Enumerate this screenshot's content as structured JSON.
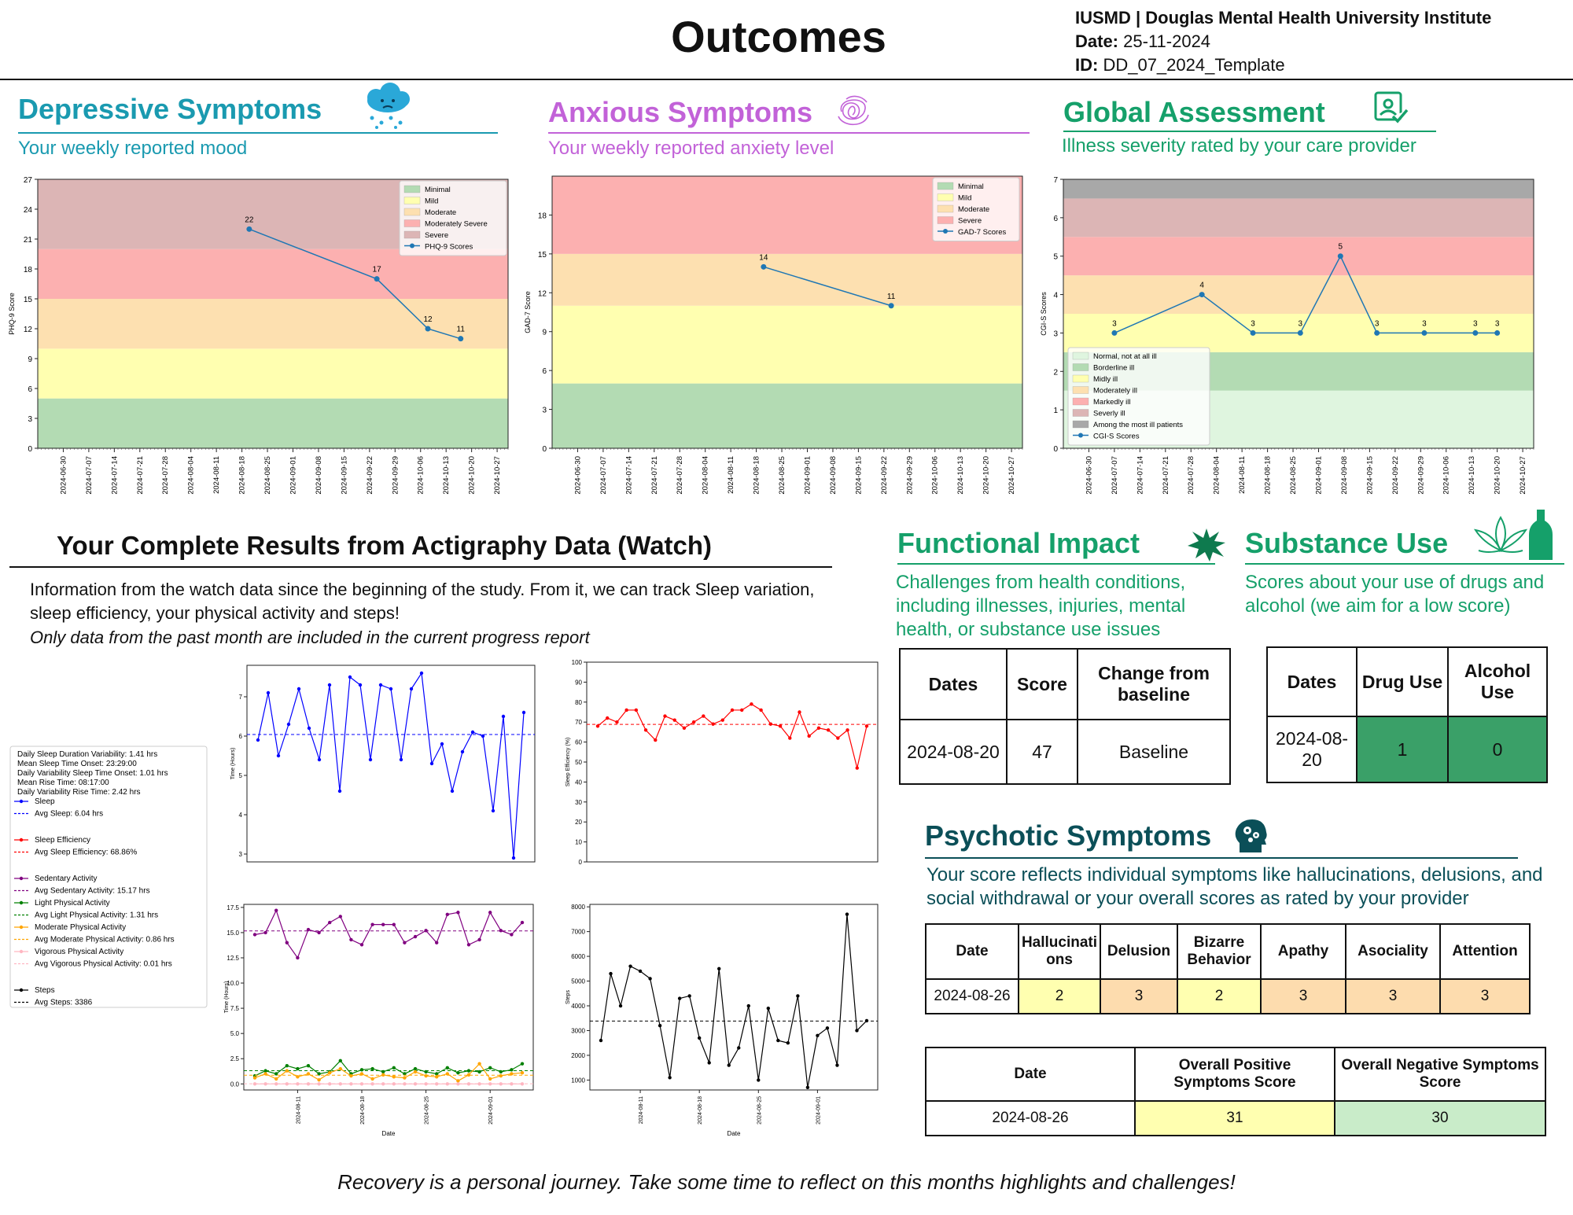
{
  "header": {
    "title": "Outcomes",
    "org": "IUSMD | Douglas Mental Health University Institute",
    "date_label": "Date:",
    "date_value": "25-11-2024",
    "id_label": "ID:",
    "id_value": "DD_07_2024_Template"
  },
  "dates_axis": [
    "2024-06-30",
    "2024-07-07",
    "2024-07-14",
    "2024-07-21",
    "2024-07-28",
    "2024-08-04",
    "2024-08-11",
    "2024-08-18",
    "2024-08-25",
    "2024-09-01",
    "2024-09-08",
    "2024-09-15",
    "2024-09-22",
    "2024-09-29",
    "2024-10-06",
    "2024-10-13",
    "2024-10-20",
    "2024-10-27"
  ],
  "depressive": {
    "title": "Depressive Symptoms",
    "subtitle": "Your weekly reported mood",
    "color": "#1a9ab0",
    "icon": "rain-cloud-icon"
  },
  "anxious": {
    "title": "Anxious Symptoms",
    "subtitle": "Your weekly reported anxiety level",
    "color": "#c262d8",
    "icon": "scribble-icon"
  },
  "global": {
    "title": "Global Assessment",
    "subtitle": "Illness severity rated by your care provider",
    "color": "#15a06a",
    "icon": "clipboard-check-icon"
  },
  "actigraphy": {
    "title": "Your Complete Results from Actigraphy Data (Watch)",
    "desc1": "Information from the watch data since the beginning of the study. From it, we can track Sleep variation,",
    "desc2": "sleep efficiency, your physical activity and steps!",
    "desc3": "Only data from the past month are included in the current progress report",
    "legend": [
      {
        "text": "Daily Sleep Duration Variability: 1.41 hrs",
        "kind": "text"
      },
      {
        "text": "Mean Sleep Time Onset: 23:29:00",
        "kind": "text"
      },
      {
        "text": "Daily Variability Sleep Time Onset: 1.01 hrs",
        "kind": "text"
      },
      {
        "text": "Mean Rise Time: 08:17:00",
        "kind": "text"
      },
      {
        "text": "Daily Variability Rise Time: 2.42 hrs",
        "kind": "text"
      },
      {
        "text": "Sleep",
        "kind": "line",
        "color": "#0000ff"
      },
      {
        "text": "Avg Sleep: 6.04 hrs",
        "kind": "dash",
        "color": "#0000ff"
      },
      {
        "text": "",
        "kind": "gap"
      },
      {
        "text": "Sleep Efficiency",
        "kind": "line",
        "color": "#ff0000"
      },
      {
        "text": "Avg Sleep Efficiency: 68.86%",
        "kind": "dash",
        "color": "#ff0000"
      },
      {
        "text": "",
        "kind": "gap"
      },
      {
        "text": "Sedentary Activity",
        "kind": "line",
        "color": "#800080"
      },
      {
        "text": "Avg Sedentary Activity: 15.17 hrs",
        "kind": "dash",
        "color": "#800080"
      },
      {
        "text": "Light Physical Activity",
        "kind": "line",
        "color": "#008000"
      },
      {
        "text": "Avg Light Physical Activity: 1.31 hrs",
        "kind": "dash",
        "color": "#008000"
      },
      {
        "text": "Moderate Physical Activity",
        "kind": "line",
        "color": "#ffa500"
      },
      {
        "text": "Avg Moderate Physical Activity: 0.86 hrs",
        "kind": "dash",
        "color": "#ffa500"
      },
      {
        "text": "Vigorous Physical Activity",
        "kind": "line",
        "color": "#ffb6c1"
      },
      {
        "text": "Avg Vigorous Physical Activity: 0.01 hrs",
        "kind": "dash",
        "color": "#ffb6c1"
      },
      {
        "text": "",
        "kind": "gap"
      },
      {
        "text": "Steps",
        "kind": "line",
        "color": "#000000"
      },
      {
        "text": "Avg Steps: 3386",
        "kind": "dash",
        "color": "#000000"
      }
    ]
  },
  "functional": {
    "title": "Functional Impact",
    "color": "#15a06a",
    "subtitle": [
      "Challenges from health conditions,",
      "including illnesses, injuries, mental",
      "health, or substance use issues"
    ],
    "headers": [
      "Dates",
      "Score",
      "Change from baseline"
    ],
    "row": [
      "2024-08-20",
      "47",
      "Baseline"
    ]
  },
  "substance": {
    "title": "Substance Use",
    "color": "#15a06a",
    "subtitle": [
      "Scores about your use of drugs and",
      "alcohol (we aim for a low score)"
    ],
    "headers": [
      "Dates",
      "Drug Use",
      "Alcohol Use"
    ],
    "row": [
      "2024-08-20",
      "1",
      "0"
    ],
    "cell_color": "#3aa068"
  },
  "psychotic": {
    "title": "Psychotic Symptoms",
    "color": "#0b4f58",
    "subtitle": [
      "Your score reflects individual symptoms like hallucinations, delusions, and",
      "social withdrawal or your overall scores as rated by your provider"
    ],
    "headers": [
      "Date",
      "Hallucinations",
      "Delusion",
      "Bizarre Behavior",
      "Apathy",
      "Asociality",
      "Attention"
    ],
    "row": [
      "2024-08-26",
      "2",
      "3",
      "2",
      "3",
      "3",
      "3"
    ],
    "row_colors": [
      "#ffffff",
      "#ffffb0",
      "#fddcae",
      "#ffffb0",
      "#fddcae",
      "#fddcae",
      "#fddcae"
    ],
    "overall_headers": [
      "Date",
      "Overall Positive Symptoms Score",
      "Overall Negative Symptoms Score"
    ],
    "overall_row": [
      "2024-08-26",
      "31",
      "30"
    ],
    "overall_colors": [
      "#ffffff",
      "#ffffb0",
      "#c9ecc9"
    ]
  },
  "footer": "Recovery is a personal journey. Take some time to reflect on this months highlights and challenges!",
  "chart_data": [
    {
      "type": "line",
      "id": "phq9",
      "ylabel": "PHQ-9 Score",
      "ylim": [
        0,
        27
      ],
      "yticks": [
        0,
        3,
        6,
        9,
        12,
        15,
        18,
        21,
        24,
        27
      ],
      "bands": [
        {
          "name": "Minimal",
          "from": 0,
          "to": 5,
          "color": "#b3dbb3"
        },
        {
          "name": "Mild",
          "from": 5,
          "to": 10,
          "color": "#ffffb0"
        },
        {
          "name": "Moderate",
          "from": 10,
          "to": 15,
          "color": "#fde0b0"
        },
        {
          "name": "Moderately Severe",
          "from": 15,
          "to": 20,
          "color": "#fcb0b0"
        },
        {
          "name": "Severe",
          "from": 20,
          "to": 27,
          "color": "#dcb5b5"
        }
      ],
      "series_name": "PHQ-9 Scores",
      "x": [
        "2024-08-20",
        "2024-09-24",
        "2024-10-08",
        "2024-10-17"
      ],
      "values": [
        22,
        17,
        12,
        11
      ]
    },
    {
      "type": "line",
      "id": "gad7",
      "ylabel": "GAD-7 Score",
      "ylim": [
        0,
        21
      ],
      "yticks": [
        0,
        3,
        6,
        9,
        12,
        15,
        18
      ],
      "bands": [
        {
          "name": "Minimal",
          "from": 0,
          "to": 5,
          "color": "#b3dbb3"
        },
        {
          "name": "Mild",
          "from": 5,
          "to": 11,
          "color": "#ffffb0"
        },
        {
          "name": "Moderate",
          "from": 11,
          "to": 15,
          "color": "#fde0b0"
        },
        {
          "name": "Severe",
          "from": 15,
          "to": 21,
          "color": "#fcb0b0"
        }
      ],
      "series_name": "GAD-7 Scores",
      "x": [
        "2024-08-20",
        "2024-09-24"
      ],
      "values": [
        14,
        11
      ]
    },
    {
      "type": "line",
      "id": "cgis",
      "ylabel": "CGI-S Scores",
      "ylim": [
        0,
        7
      ],
      "yticks": [
        0,
        1,
        2,
        3,
        4,
        5,
        6,
        7
      ],
      "bands": [
        {
          "name": "Normal, not at all ill",
          "from": 0,
          "to": 1.5,
          "color": "#dff5df"
        },
        {
          "name": "Borderline ill",
          "from": 1.5,
          "to": 2.5,
          "color": "#b3dbb3"
        },
        {
          "name": "Midly ill",
          "from": 2.5,
          "to": 3.5,
          "color": "#ffffb0"
        },
        {
          "name": "Moderately ill",
          "from": 3.5,
          "to": 4.5,
          "color": "#fde0b0"
        },
        {
          "name": "Markedly ill",
          "from": 4.5,
          "to": 5.5,
          "color": "#fcb0b0"
        },
        {
          "name": "Severly ill",
          "from": 5.5,
          "to": 6.5,
          "color": "#dcb5b5"
        },
        {
          "name": "Among the most ill patients",
          "from": 6.5,
          "to": 7,
          "color": "#a8a8a8"
        }
      ],
      "series_name": "CGI-S Scores",
      "x": [
        "2024-07-07",
        "2024-07-31",
        "2024-08-14",
        "2024-08-27",
        "2024-09-07",
        "2024-09-17",
        "2024-09-30",
        "2024-10-14",
        "2024-10-20"
      ],
      "values": [
        3,
        4,
        3,
        3,
        5,
        3,
        3,
        3,
        3
      ]
    },
    {
      "type": "line",
      "id": "sleep",
      "ylabel": "Time (Hours)",
      "ylim": [
        2.8,
        7.8
      ],
      "yticks": [
        3,
        4,
        5,
        6,
        7
      ],
      "avg": 6.04,
      "color": "#0000ff",
      "values": [
        5.9,
        7.1,
        5.5,
        6.3,
        7.2,
        6.2,
        5.4,
        7.3,
        4.6,
        7.5,
        7.3,
        5.4,
        7.3,
        7.2,
        5.4,
        7.2,
        7.6,
        5.3,
        5.8,
        4.6,
        5.6,
        6.1,
        6.0,
        4.1,
        6.5,
        2.9,
        6.6
      ]
    },
    {
      "type": "line",
      "id": "sleep_eff",
      "ylabel": "Sleep Efficiency (%)",
      "ylim": [
        0,
        100
      ],
      "yticks": [
        0,
        10,
        20,
        30,
        40,
        50,
        60,
        70,
        80,
        90,
        100
      ],
      "avg": 68.86,
      "color": "#ff0000",
      "values": [
        68,
        72,
        70,
        76,
        76,
        66,
        61,
        73,
        71,
        67,
        70,
        73,
        69,
        71,
        76,
        76,
        79,
        76,
        69,
        68,
        62,
        75,
        63,
        67,
        66,
        62,
        66,
        47,
        68
      ]
    },
    {
      "type": "line",
      "id": "activity",
      "xlabel": "Date",
      "ylabel": "Time (Hours)",
      "ylim": [
        -0.6,
        17.8
      ],
      "yticks": [
        0.0,
        2.5,
        5.0,
        7.5,
        10.0,
        12.5,
        15.0,
        17.5
      ],
      "xticks": [
        "2024-08-11",
        "2024-08-18",
        "2024-08-25",
        "2024-09-01"
      ],
      "series": [
        {
          "name": "Sedentary Activity",
          "color": "#800080",
          "avg": 15.17,
          "values": [
            14.8,
            15.0,
            17.2,
            14.0,
            12.5,
            15.3,
            15.0,
            16.0,
            16.6,
            14.3,
            13.8,
            15.8,
            15.8,
            15.8,
            14.0,
            14.6,
            15.2,
            14.0,
            16.8,
            17.0,
            13.8,
            14.3,
            17.0,
            15.2,
            14.8,
            16.0
          ]
        },
        {
          "name": "Light Physical Activity",
          "color": "#008000",
          "avg": 1.31,
          "values": [
            0.8,
            1.3,
            1.0,
            1.8,
            1.5,
            1.8,
            1.0,
            1.2,
            2.3,
            1.0,
            1.4,
            1.5,
            1.2,
            1.6,
            1.0,
            1.5,
            1.2,
            1.0,
            1.6,
            1.1,
            1.3,
            1.2,
            1.6,
            1.2,
            1.4,
            2.0
          ]
        },
        {
          "name": "Moderate Physical Activity",
          "color": "#ffa500",
          "avg": 0.86,
          "values": [
            0.6,
            1.0,
            0.5,
            1.3,
            0.7,
            1.0,
            0.4,
            1.1,
            1.5,
            0.8,
            1.0,
            0.5,
            0.9,
            0.7,
            0.6,
            1.2,
            0.8,
            0.7,
            1.0,
            0.3,
            0.9,
            2.0,
            0.5,
            0.8,
            1.0,
            1.1
          ]
        },
        {
          "name": "Vigorous Physical Activity",
          "color": "#ffb6c1",
          "avg": 0.01,
          "values": [
            0,
            0,
            0,
            0,
            0,
            0,
            0,
            0,
            0,
            0,
            0,
            0,
            0,
            0,
            0,
            0,
            0,
            0,
            0,
            0,
            0,
            0,
            0,
            0,
            0,
            0
          ]
        }
      ]
    },
    {
      "type": "line",
      "id": "steps",
      "xlabel": "Date",
      "ylabel": "Steps",
      "ylim": [
        600,
        8100
      ],
      "yticks": [
        1000,
        2000,
        3000,
        4000,
        5000,
        6000,
        7000,
        8000
      ],
      "xticks": [
        "2024-08-11",
        "2024-08-18",
        "2024-08-25",
        "2024-09-01"
      ],
      "avg": 3386,
      "color": "#000000",
      "values": [
        2600,
        5300,
        4000,
        5600,
        5400,
        5100,
        3200,
        1100,
        4300,
        4400,
        2700,
        1700,
        5500,
        1600,
        2300,
        4000,
        1000,
        3900,
        2600,
        2500,
        4400,
        700,
        2800,
        3100,
        1600,
        7700,
        3000,
        3400
      ]
    }
  ]
}
